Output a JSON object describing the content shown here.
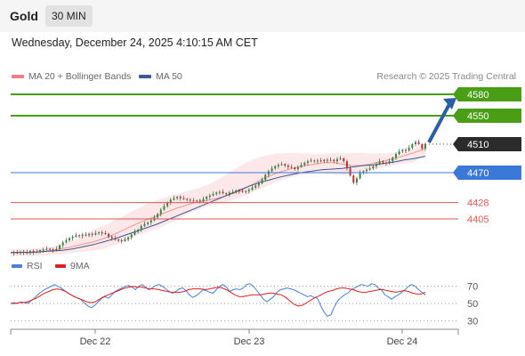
{
  "header": {
    "symbol": "Gold",
    "interval": "30 MIN"
  },
  "datetime": "Wednesday, December 24, 2025 4:10:15 AM CET",
  "legend": {
    "ma20_label": "MA 20 + Bollinger Bands",
    "ma20_color": "#f08080",
    "ma50_label": "MA 50",
    "ma50_color": "#3b5998"
  },
  "copyright": "Research © 2025 Trading Central",
  "rsi_legend": {
    "rsi_label": "RSI",
    "rsi_color": "#4a7fd4",
    "ma_label": "9MA",
    "ma_color": "#e02020"
  },
  "chart_data": {
    "type": "candlestick",
    "title": "",
    "x_ticks": [
      "Dec 22",
      "Dec 23",
      "Dec 24"
    ],
    "ylim": [
      4350,
      4600
    ],
    "last_price": {
      "label": "4510",
      "value": 4510
    },
    "levels": [
      {
        "label": "4580",
        "value": 4580,
        "kind": "resistance",
        "color": "#4a9e16"
      },
      {
        "label": "4550",
        "value": 4550,
        "kind": "resistance",
        "color": "#4a9e16"
      },
      {
        "label": "4470",
        "value": 4470,
        "kind": "pivot",
        "color": "#3c78d8"
      },
      {
        "label": "4428",
        "value": 4428,
        "kind": "support",
        "color": "#e05555"
      },
      {
        "label": "4405",
        "value": 4405,
        "kind": "support",
        "color": "#e05555"
      }
    ],
    "scenario_arrow": {
      "from": 4510,
      "to": 4580,
      "direction": "up"
    },
    "price_path": [
      4357,
      4358,
      4357,
      4359,
      4358,
      4357,
      4360,
      4358,
      4359,
      4361,
      4362,
      4363,
      4362,
      4361,
      4363,
      4368,
      4372,
      4375,
      4378,
      4380,
      4382,
      4381,
      4383,
      4382,
      4384,
      4383,
      4385,
      4386,
      4385,
      4384,
      4380,
      4378,
      4376,
      4375,
      4374,
      4376,
      4379,
      4383,
      4387,
      4390,
      4395,
      4398,
      4400,
      4403,
      4407,
      4412,
      4418,
      4423,
      4428,
      4432,
      4434,
      4436,
      4434,
      4433,
      4432,
      4431,
      4430,
      4431,
      4430,
      4433,
      4436,
      4438,
      4440,
      4442,
      4443,
      4441,
      4440,
      4442,
      4443,
      4445,
      4444,
      4443,
      4444,
      4446,
      4449,
      4452,
      4455,
      4460,
      4467,
      4472,
      4476,
      4479,
      4481,
      4482,
      4480,
      4478,
      4477,
      4475,
      4478,
      4481,
      4484,
      4486,
      4487,
      4486,
      4487,
      4486,
      4488,
      4487,
      4488,
      4486,
      4489,
      4490,
      4486,
      4476,
      4466,
      4456,
      4462,
      4470,
      4472,
      4474,
      4476,
      4479,
      4482,
      4486,
      4484,
      4483,
      4486,
      4491,
      4496,
      4500,
      4502,
      4501,
      4505,
      4510,
      4513,
      4510,
      4504,
      4510
    ],
    "ma20": [
      4357,
      4358,
      4358,
      4359,
      4360,
      4362,
      4364,
      4367,
      4370,
      4373,
      4377,
      4382,
      4388,
      4394,
      4400,
      4405,
      4410,
      4415,
      4420,
      4424,
      4428,
      4430,
      4433,
      4436,
      4440,
      4445,
      4452,
      4459,
      4465,
      4470,
      4474,
      4477,
      4480,
      4482,
      4484,
      4484,
      4482,
      4480,
      4480,
      4482,
      4485,
      4488,
      4491,
      4495,
      4499,
      4504
    ],
    "ma50": [
      4358,
      4358,
      4358,
      4359,
      4360,
      4361,
      4363,
      4366,
      4369,
      4373,
      4377,
      4382,
      4387,
      4392,
      4397,
      4403,
      4409,
      4415,
      4421,
      4427,
      4433,
      4439,
      4445,
      4451,
      4456,
      4460,
      4464,
      4467,
      4470,
      4472,
      4474,
      4475,
      4476,
      4478,
      4480,
      4481,
      4483,
      4485,
      4488,
      4490,
      4493
    ],
    "bb_upper": [
      4362,
      4363,
      4364,
      4366,
      4370,
      4378,
      4388,
      4396,
      4405,
      4415,
      4425,
      4432,
      4438,
      4443,
      4448,
      4455,
      4466,
      4478,
      4488,
      4494,
      4497,
      4498,
      4497,
      4496,
      4497,
      4497,
      4498,
      4497,
      4497,
      4498,
      4502,
      4512
    ],
    "bb_lower": [
      4352,
      4353,
      4353,
      4354,
      4356,
      4358,
      4360,
      4363,
      4370,
      4378,
      4386,
      4392,
      4400,
      4410,
      4418,
      4424,
      4428,
      4434,
      4442,
      4450,
      4458,
      4464,
      4468,
      4470,
      4468,
      4466,
      4470,
      4474,
      4478,
      4482,
      4484,
      4494
    ],
    "rsi": {
      "legend": [
        "RSI",
        "9MA"
      ],
      "ylim": [
        20,
        80
      ],
      "levels": [
        70,
        50,
        30
      ],
      "rsi": [
        50,
        51,
        50,
        52,
        51,
        50,
        53,
        56,
        60,
        63,
        66,
        68,
        70,
        72,
        70,
        68,
        65,
        62,
        60,
        58,
        56,
        54,
        50,
        47,
        45,
        48,
        52,
        56,
        58,
        56,
        60,
        64,
        66,
        68,
        70,
        71,
        69,
        66,
        70,
        72,
        69,
        66,
        68,
        71,
        72,
        70,
        67,
        64,
        62,
        64,
        67,
        68,
        65,
        60,
        57,
        59,
        62,
        66,
        65,
        63,
        62,
        66,
        70,
        72,
        69,
        64,
        66,
        67,
        66,
        68,
        72,
        73,
        70,
        65,
        60,
        55,
        52,
        55,
        58,
        63,
        66,
        67,
        68,
        67,
        66,
        64,
        62,
        60,
        58,
        59,
        57,
        56,
        47,
        40,
        35,
        37,
        46,
        53,
        57,
        60,
        62,
        66,
        68,
        70,
        72,
        71,
        70,
        73,
        72,
        68,
        66,
        60,
        58,
        55,
        58,
        60,
        63,
        66,
        70,
        72,
        70,
        66,
        63,
        60
      ],
      "ma9": [
        50,
        50,
        51,
        51,
        52,
        54,
        56,
        59,
        62,
        64,
        66,
        67,
        66,
        64,
        61,
        58,
        56,
        54,
        52,
        51,
        52,
        55,
        58,
        60,
        62,
        64,
        66,
        68,
        69,
        70,
        69,
        69,
        68,
        67,
        67,
        66,
        65,
        64,
        63,
        63,
        63,
        64,
        66,
        67,
        67,
        67,
        66,
        67,
        68,
        69,
        68,
        66,
        63,
        60,
        58,
        58,
        59,
        60,
        60,
        60,
        61,
        62,
        62,
        61,
        60,
        57,
        53,
        49,
        47,
        48,
        51,
        54,
        57,
        59,
        62,
        64,
        65,
        67,
        68,
        68,
        67,
        66,
        64,
        63,
        63,
        64,
        65,
        66,
        66,
        65,
        64,
        63,
        64,
        65,
        64,
        62,
        61,
        61,
        63
      ]
    }
  }
}
